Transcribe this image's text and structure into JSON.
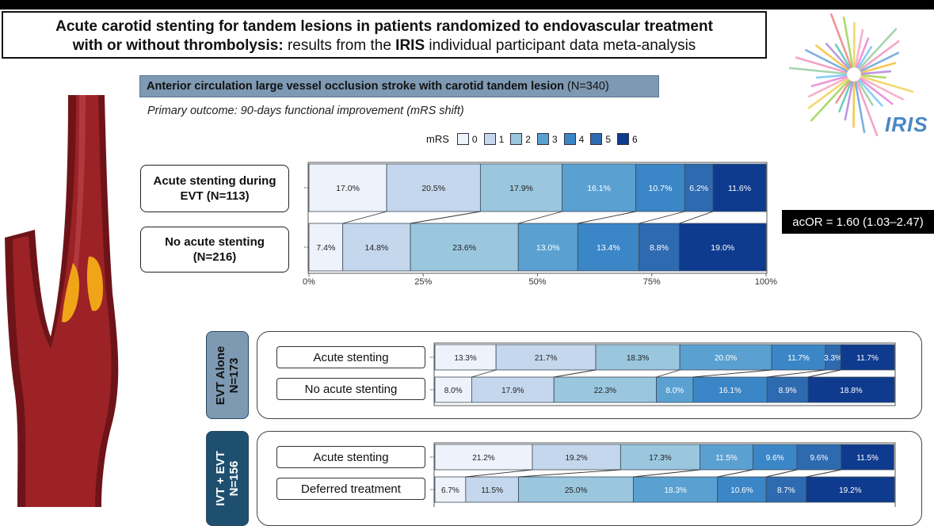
{
  "title": {
    "line1": "Acute carotid stenting for tandem lesions in patients randomized to endovascular treatment",
    "line2_bold": "with or without thrombolysis:",
    "line2_mid": " results from the ",
    "line2_iris": "IRIS",
    "line2_end": " individual participant data meta-analysis"
  },
  "section": {
    "bold": "Anterior circulation large vessel occlusion stroke with carotid tandem lesion",
    "n": " (N=340)"
  },
  "primary_outcome": "Primary outcome: 90-days functional improvement (mRS shift)",
  "legend": {
    "label": "mRS",
    "items": [
      "0",
      "1",
      "2",
      "3",
      "4",
      "5",
      "6"
    ]
  },
  "colors": [
    "#eef2fb",
    "#c5d7ec",
    "#9ac6de",
    "#5aa1d2",
    "#3b86c6",
    "#2e6ab0",
    "#0f3b8f"
  ],
  "logo": {
    "text": "IRIS",
    "icon": "iris-starburst-logo"
  },
  "illustration": {
    "icon": "carotid-artery-plaque-illustration"
  },
  "acor": "acOR = 1.60 (1.03–2.47)",
  "groups": {
    "g1": "Acute stenting during EVT (N=113)",
    "g2": "No acute stenting (N=216)"
  },
  "subgroups": {
    "evt": {
      "line1": "EVT Alone",
      "line2": "N=173",
      "row1": "Acute stenting",
      "row2": "No acute stenting"
    },
    "ivt": {
      "line1": "IVT + EVT",
      "line2": "N=156",
      "row1": "Acute stenting",
      "row2": "Deferred  treatment"
    }
  },
  "chart_data": [
    {
      "type": "bar",
      "stacked": true,
      "orientation": "horizontal",
      "categories": [
        "Acute stenting during EVT (N=113)",
        "No acute stenting (N=216)"
      ],
      "series_labels": [
        "0",
        "1",
        "2",
        "3",
        "4",
        "5",
        "6"
      ],
      "rows": [
        {
          "name": "Acute stenting during EVT (N=113)",
          "values": [
            17.0,
            20.5,
            17.9,
            16.1,
            10.7,
            6.2,
            11.6
          ],
          "labels": [
            "17.0%",
            "20.5%",
            "17.9%",
            "16.1%",
            "10.7%",
            "6.2%",
            "11.6%"
          ]
        },
        {
          "name": "No acute stenting (N=216)",
          "values": [
            7.4,
            14.8,
            23.6,
            13.0,
            13.4,
            8.8,
            19.0
          ],
          "labels": [
            "7.4%",
            "14.8%",
            "23.6%",
            "13.0%",
            "13.4%",
            "8.8%",
            "19.0%"
          ]
        }
      ],
      "xlim": [
        0,
        100
      ],
      "xticks": [
        "0%",
        "25%",
        "50%",
        "75%",
        "100%"
      ]
    },
    {
      "type": "bar",
      "stacked": true,
      "orientation": "horizontal",
      "categories": [
        "Acute stenting",
        "No acute stenting"
      ],
      "rows": [
        {
          "name": "Acute stenting",
          "values": [
            13.3,
            21.7,
            18.3,
            20.0,
            11.7,
            3.3,
            11.7
          ],
          "labels": [
            "13.3%",
            "21.7%",
            "18.3%",
            "20.0%",
            "11.7%",
            "3.3%",
            "11.7%"
          ]
        },
        {
          "name": "No acute stenting",
          "values": [
            8.0,
            17.9,
            22.3,
            8.0,
            16.1,
            8.9,
            18.8
          ],
          "labels": [
            "8.0%",
            "17.9%",
            "22.3%",
            "8.0%",
            "16.1%",
            "8.9%",
            "18.8%"
          ]
        }
      ],
      "xlim": [
        0,
        100
      ]
    },
    {
      "type": "bar",
      "stacked": true,
      "orientation": "horizontal",
      "categories": [
        "Acute stenting",
        "Deferred  treatment"
      ],
      "rows": [
        {
          "name": "Acute stenting",
          "values": [
            21.2,
            19.2,
            17.3,
            11.5,
            9.6,
            9.6,
            11.5
          ],
          "labels": [
            "21.2%",
            "19.2%",
            "17.3%",
            "11.5%",
            "9.6%",
            "9.6%",
            "11.5%"
          ]
        },
        {
          "name": "Deferred  treatment",
          "values": [
            6.7,
            11.5,
            25.0,
            18.3,
            10.6,
            8.7,
            19.2
          ],
          "labels": [
            "6.7%",
            "11.5%",
            "25.0%",
            "18.3%",
            "10.6%",
            "8.7%",
            "19.2%"
          ]
        }
      ],
      "xlim": [
        0,
        100
      ]
    }
  ]
}
